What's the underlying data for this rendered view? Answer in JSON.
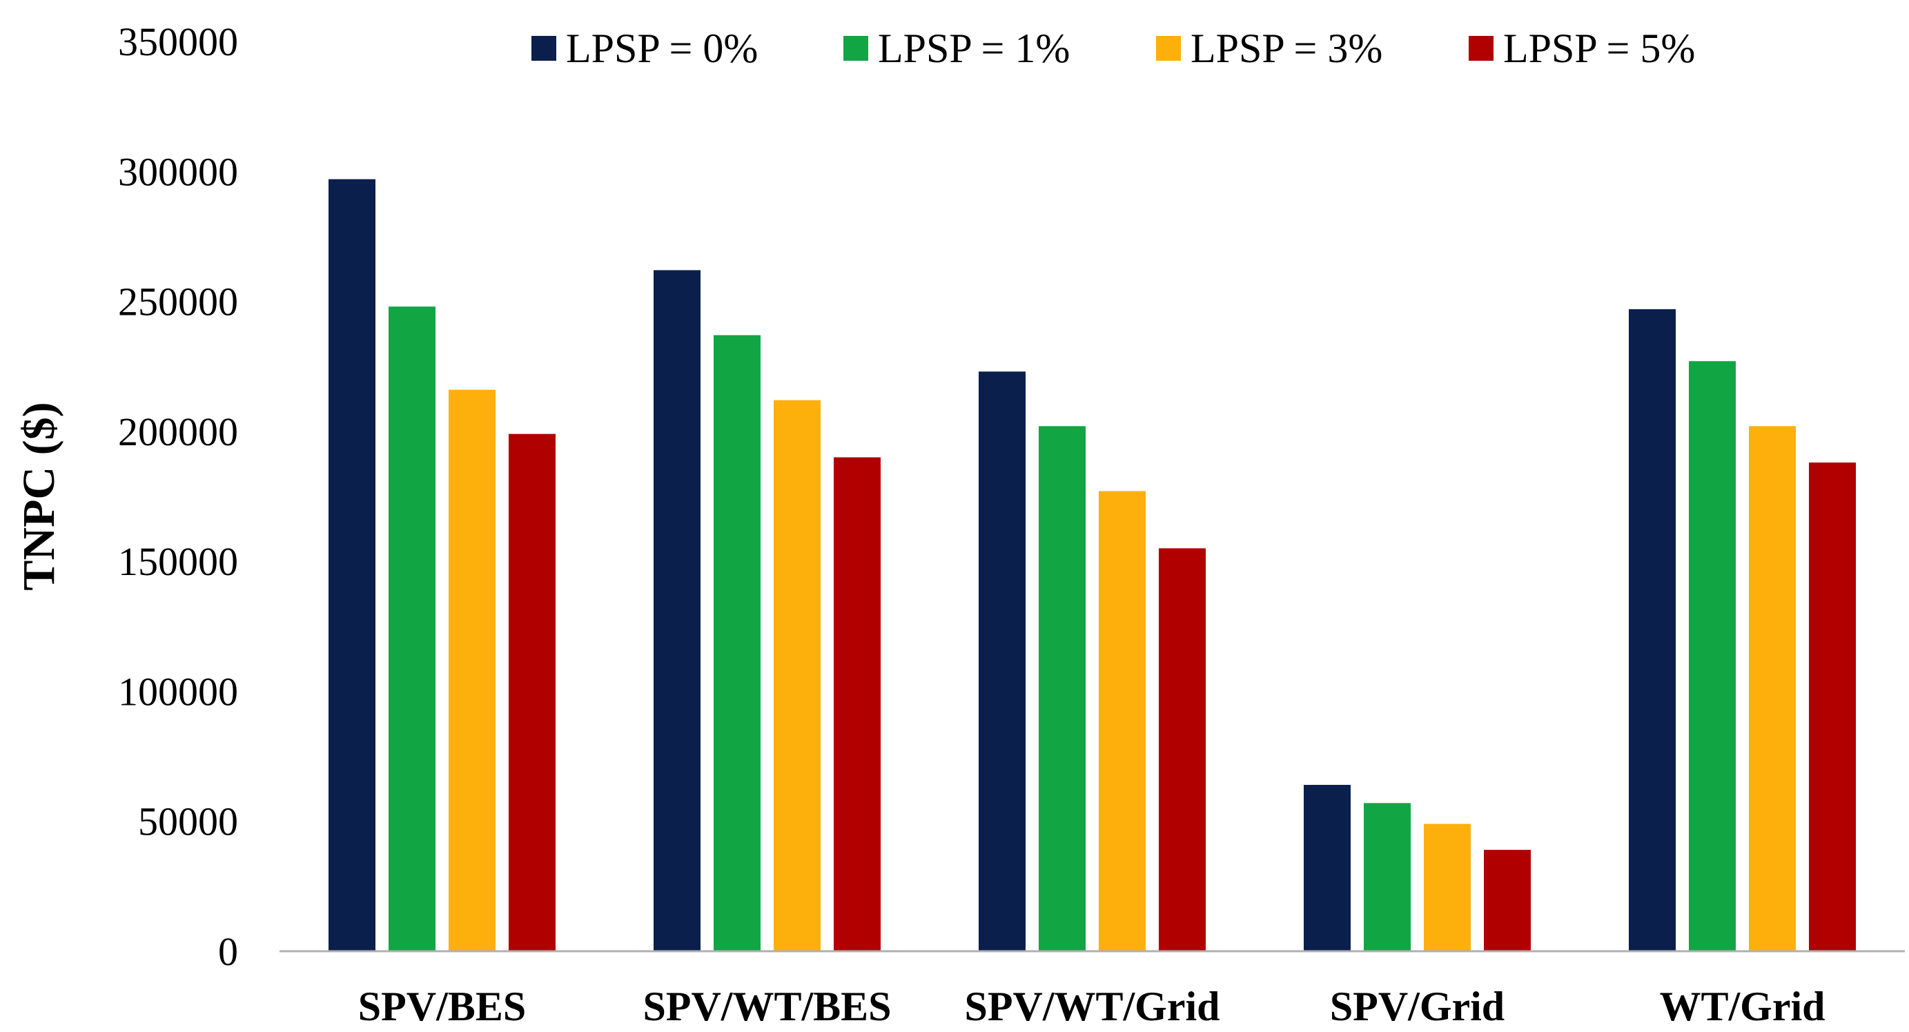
{
  "chart_data": {
    "type": "bar",
    "title": "",
    "xlabel": "",
    "ylabel": "TNPC ($)",
    "ylim": [
      0,
      350000
    ],
    "y_ticks": [
      0,
      50000,
      100000,
      150000,
      200000,
      250000,
      300000,
      350000
    ],
    "y_tick_labels": [
      "0",
      "50000",
      "100000",
      "150000",
      "200000",
      "250000",
      "300000",
      "350000"
    ],
    "grid": false,
    "legend_position": "top",
    "categories": [
      "SPV/BES",
      "SPV/WT/BES",
      "SPV/WT/Grid",
      "SPV/Grid",
      "WT/Grid"
    ],
    "series": [
      {
        "name": "LPSP = 0%",
        "color": "#0b1f4d",
        "values": [
          297000,
          262000,
          223000,
          64000,
          247000
        ]
      },
      {
        "name": "LPSP = 1%",
        "color": "#12a544",
        "values": [
          248000,
          237000,
          202000,
          57000,
          227000
        ]
      },
      {
        "name": "LPSP = 3%",
        "color": "#fdb00c",
        "values": [
          216000,
          212000,
          177000,
          49000,
          202000
        ]
      },
      {
        "name": "LPSP = 5%",
        "color": "#b00000",
        "values": [
          199000,
          190000,
          155000,
          39000,
          188000
        ]
      }
    ]
  }
}
